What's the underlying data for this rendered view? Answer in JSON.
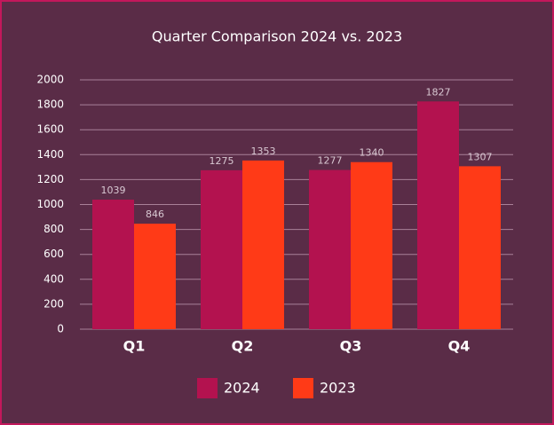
{
  "chart_data": {
    "type": "bar",
    "title": "Quarter Comparison 2024 vs. 2023",
    "categories": [
      "Q1",
      "Q2",
      "Q3",
      "Q4"
    ],
    "series": [
      {
        "name": "2024",
        "color": "#b3124f",
        "values": [
          1039,
          1275,
          1277,
          1827
        ]
      },
      {
        "name": "2023",
        "color": "#ff3a17",
        "values": [
          846,
          1353,
          1340,
          1307
        ]
      }
    ],
    "ylim": [
      0,
      2000
    ],
    "yticks": [
      0,
      200,
      400,
      600,
      800,
      1000,
      1200,
      1400,
      1600,
      1800,
      2000
    ],
    "grid": true,
    "legend": "bottom"
  }
}
